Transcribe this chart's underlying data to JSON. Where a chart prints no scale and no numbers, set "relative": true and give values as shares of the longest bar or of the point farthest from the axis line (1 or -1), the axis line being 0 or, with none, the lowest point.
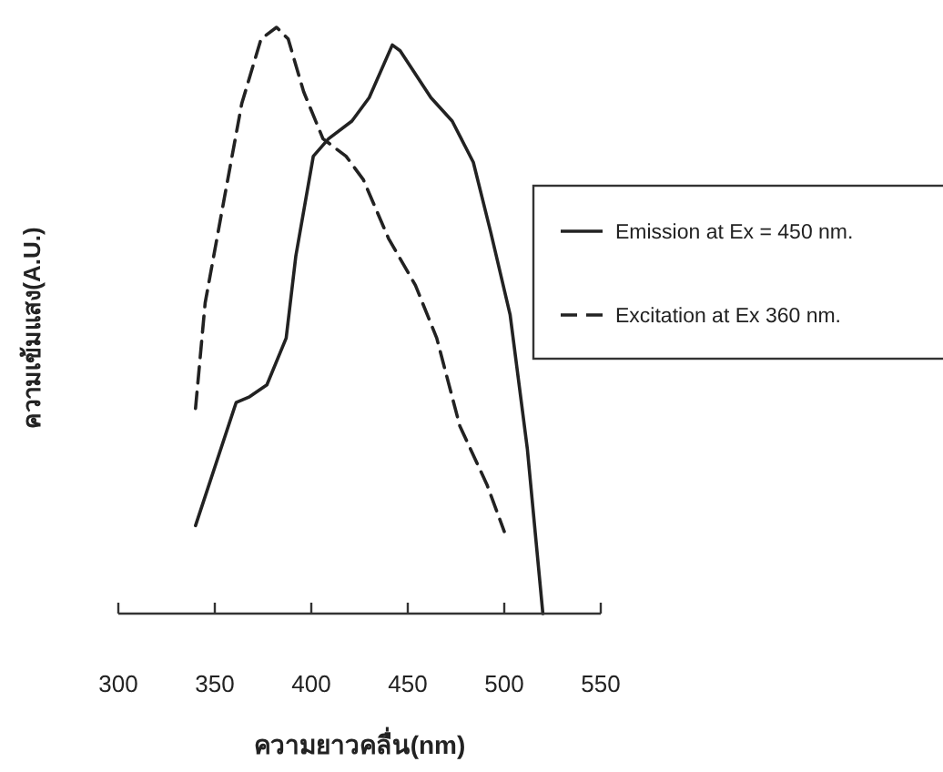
{
  "chart_data": {
    "type": "line",
    "relative": true,
    "xlabel": "ความยาวคลื่น(nm)",
    "ylabel": "ความเข้มแสง(A.U.)",
    "xlim": [
      300,
      550
    ],
    "xticks": [
      300,
      350,
      400,
      450,
      500,
      550
    ],
    "legend": "right",
    "grid": false,
    "series": [
      {
        "name": "Emission at Ex = 450 nm.",
        "color": "#222222",
        "line_style": "solid",
        "x": [
          340,
          361,
          368,
          377,
          387,
          392,
          401,
          409,
          421,
          430,
          442,
          446,
          462,
          473,
          484,
          493,
          503,
          512,
          520
        ],
        "values": [
          0.15,
          0.36,
          0.37,
          0.39,
          0.47,
          0.61,
          0.78,
          0.81,
          0.84,
          0.88,
          0.97,
          0.96,
          0.88,
          0.84,
          0.77,
          0.65,
          0.51,
          0.28,
          0
        ]
      },
      {
        "name": "Excitation at Ex 360 nm.",
        "color": "#222222",
        "line_style": "dashed",
        "x": [
          340,
          345,
          355,
          364,
          374,
          382,
          388,
          396,
          406,
          418,
          427,
          440,
          454,
          465,
          477,
          491,
          500
        ],
        "values": [
          0.35,
          0.53,
          0.71,
          0.87,
          0.98,
          1,
          0.98,
          0.89,
          0.81,
          0.78,
          0.74,
          0.64,
          0.56,
          0.47,
          0.32,
          0.22,
          0.14
        ]
      }
    ]
  }
}
